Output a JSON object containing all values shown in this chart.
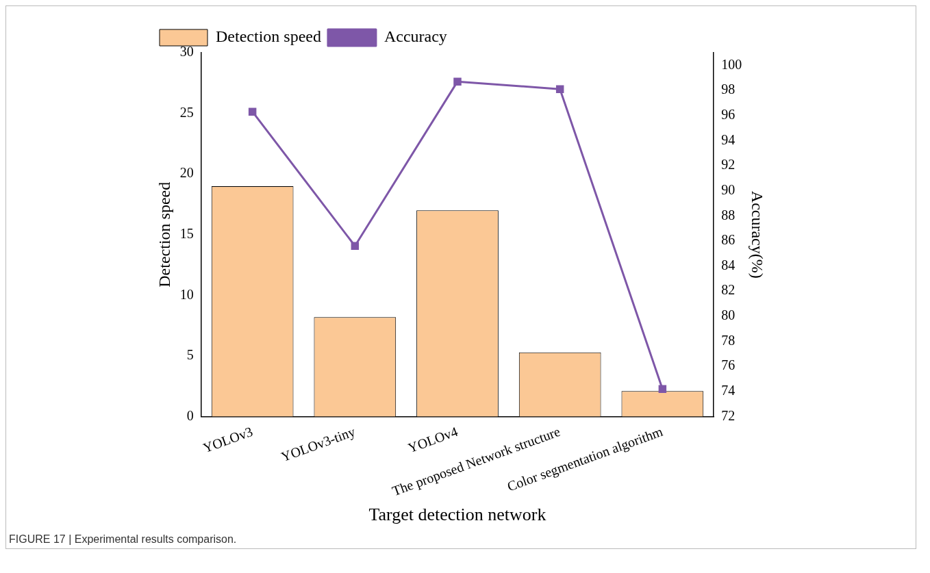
{
  "chart_data": {
    "type": "bar",
    "xlabel": "Target detection network",
    "ylabel": "Detection speed",
    "y2label": "Accuracy(%)",
    "categories": [
      "YOLOv3",
      "YOLOv3-tiny",
      "YOLOv4",
      "The proposed Network structure",
      "Color segmentation algorithm"
    ],
    "series": [
      {
        "name": "Detection speed",
        "color": "#fbc895",
        "values": [
          19,
          8.2,
          17,
          5.3,
          2.1
        ]
      },
      {
        "name": "Accuracy",
        "type": "line",
        "axis": "y2",
        "color": "#7e57a8",
        "values": [
          96.3,
          85.6,
          98.7,
          98.1,
          74.2
        ]
      }
    ],
    "ylim": [
      0,
      30
    ],
    "yticks": [
      0,
      5,
      10,
      15,
      20,
      25,
      30
    ],
    "y2lim": [
      72,
      101
    ],
    "y2ticks": [
      72,
      74,
      76,
      78,
      80,
      82,
      84,
      86,
      88,
      90,
      92,
      94,
      96,
      98,
      100
    ],
    "marker": "square",
    "grid": false,
    "legend": "top left",
    "annotations": [
      "FIGURE 17 | Experimental results comparison."
    ]
  }
}
